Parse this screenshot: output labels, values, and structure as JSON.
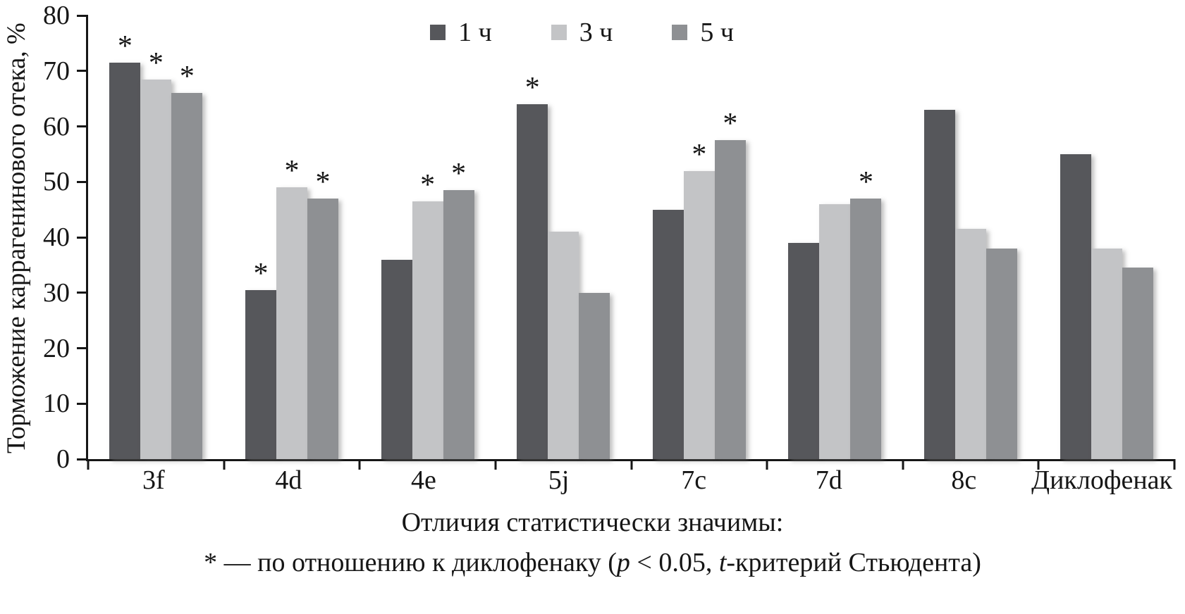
{
  "chart_data": {
    "type": "bar",
    "title": "",
    "xlabel": "",
    "ylabel": "Торможение каррагенинового отека, %",
    "ylim": [
      0,
      80
    ],
    "yticks": [
      0,
      10,
      20,
      30,
      40,
      50,
      60,
      70,
      80
    ],
    "grid": false,
    "legend_position": "top-center-inside",
    "significance_marker": "*",
    "categories": [
      "3f",
      "4d",
      "4e",
      "5j",
      "7c",
      "7d",
      "8c",
      "Диклофенак"
    ],
    "series": [
      {
        "name": "1 ч",
        "color": "#56575b",
        "values": [
          71.5,
          30.5,
          36,
          64,
          45,
          39,
          63,
          55
        ],
        "significant": [
          true,
          true,
          false,
          true,
          false,
          false,
          false,
          false
        ]
      },
      {
        "name": "3 ч",
        "color": "#c3c4c6",
        "values": [
          68.5,
          49,
          46.5,
          41,
          52,
          46,
          41.5,
          38
        ],
        "significant": [
          true,
          true,
          true,
          false,
          true,
          false,
          false,
          false
        ]
      },
      {
        "name": "5 ч",
        "color": "#8e9093",
        "values": [
          66,
          47,
          48.5,
          30,
          57.5,
          47,
          38,
          34.5
        ],
        "significant": [
          true,
          true,
          true,
          false,
          true,
          true,
          false,
          false
        ]
      }
    ]
  },
  "caption": {
    "line1": "Отличия статистически значимы:",
    "line2_prefix": "* — по отношению к диклофенаку (",
    "line2_p": "p",
    "line2_mid": " < 0.05, ",
    "line2_t": "t",
    "line2_suffix": "-критерий Стьюдента)"
  }
}
